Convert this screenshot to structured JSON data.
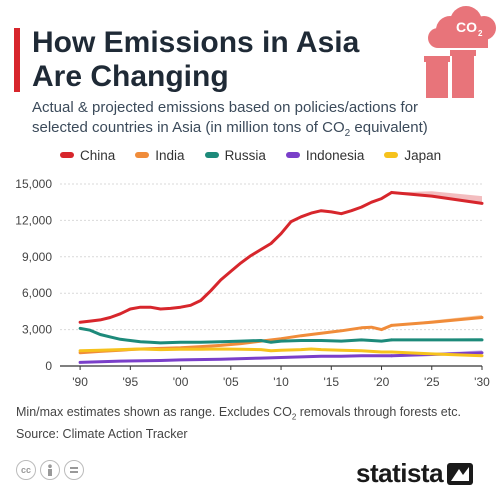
{
  "header": {
    "title_line1": "How Emissions in Asia",
    "title_line2": "Are Changing",
    "subtitle_line1": "Actual & projected emissions based on policies/actions for",
    "subtitle_line2_pre": "selected countries in Asia (in million tons of CO",
    "subtitle_sub": "2",
    "subtitle_line2_post": " equivalent)",
    "accent_color": "#d7262c"
  },
  "illustration": {
    "icon": "factory-co2-icon",
    "label": "CO",
    "label_sub": "2",
    "color": "#e8747a"
  },
  "chart_data": {
    "type": "line",
    "title": "How Emissions in Asia Are Changing",
    "xlabel": "",
    "ylabel": "",
    "x_range": [
      1988,
      2030
    ],
    "ylim": [
      0,
      15000
    ],
    "y_ticks": [
      0,
      3000,
      6000,
      9000,
      12000,
      15000
    ],
    "y_tick_labels": [
      "0",
      "3,000",
      "6,000",
      "9,000",
      "12,000",
      "15,000"
    ],
    "x_ticks": [
      1990,
      1995,
      2000,
      2005,
      2010,
      2015,
      2020,
      2025,
      2030
    ],
    "x_tick_labels": [
      "'90",
      "'95",
      "'00",
      "'05",
      "'10",
      "'15",
      "'20",
      "'25",
      "'30"
    ],
    "grid": true,
    "legend_position": "top",
    "series": [
      {
        "name": "China",
        "color": "#d7262c",
        "range_color": "#f2b6b8",
        "actual": [
          [
            1990,
            3600
          ],
          [
            1991,
            3700
          ],
          [
            1992,
            3800
          ],
          [
            1993,
            4000
          ],
          [
            1994,
            4300
          ],
          [
            1995,
            4700
          ],
          [
            1996,
            4850
          ],
          [
            1997,
            4850
          ],
          [
            1998,
            4700
          ],
          [
            1999,
            4750
          ],
          [
            2000,
            4850
          ],
          [
            2001,
            5000
          ],
          [
            2002,
            5400
          ],
          [
            2003,
            6200
          ],
          [
            2004,
            7100
          ],
          [
            2005,
            7800
          ],
          [
            2006,
            8500
          ],
          [
            2007,
            9100
          ],
          [
            2008,
            9600
          ],
          [
            2009,
            10100
          ],
          [
            2010,
            10900
          ],
          [
            2011,
            11900
          ],
          [
            2012,
            12300
          ],
          [
            2013,
            12600
          ],
          [
            2014,
            12800
          ],
          [
            2015,
            12700
          ],
          [
            2016,
            12550
          ],
          [
            2017,
            12800
          ],
          [
            2018,
            13100
          ],
          [
            2019,
            13500
          ],
          [
            2020,
            13800
          ],
          [
            2021,
            14300
          ]
        ],
        "projection_min": [
          [
            2021,
            14300
          ],
          [
            2025,
            14000
          ],
          [
            2030,
            13400
          ]
        ],
        "projection_max": [
          [
            2021,
            14300
          ],
          [
            2025,
            14400
          ],
          [
            2030,
            14000
          ]
        ]
      },
      {
        "name": "India",
        "color": "#f08c3a",
        "range_color": "#f8c99f",
        "actual": [
          [
            1990,
            1100
          ],
          [
            1992,
            1200
          ],
          [
            1994,
            1300
          ],
          [
            1996,
            1400
          ],
          [
            1998,
            1450
          ],
          [
            2000,
            1500
          ],
          [
            2002,
            1600
          ],
          [
            2004,
            1700
          ],
          [
            2006,
            1850
          ],
          [
            2008,
            2050
          ],
          [
            2010,
            2250
          ],
          [
            2012,
            2500
          ],
          [
            2014,
            2700
          ],
          [
            2016,
            2900
          ],
          [
            2018,
            3150
          ],
          [
            2019,
            3200
          ],
          [
            2020,
            3000
          ],
          [
            2021,
            3350
          ]
        ],
        "projection_min": [
          [
            2021,
            3350
          ],
          [
            2025,
            3600
          ],
          [
            2030,
            4000
          ]
        ],
        "projection_max": [
          [
            2021,
            3350
          ],
          [
            2025,
            3750
          ],
          [
            2030,
            4200
          ]
        ]
      },
      {
        "name": "Russia",
        "color": "#1d8a7a",
        "range_color": "#9fd1c8",
        "actual": [
          [
            1990,
            3100
          ],
          [
            1991,
            2950
          ],
          [
            1992,
            2600
          ],
          [
            1993,
            2400
          ],
          [
            1994,
            2200
          ],
          [
            1995,
            2100
          ],
          [
            1996,
            2000
          ],
          [
            1997,
            1950
          ],
          [
            1998,
            1900
          ],
          [
            2000,
            1950
          ],
          [
            2002,
            1950
          ],
          [
            2004,
            2000
          ],
          [
            2006,
            2050
          ],
          [
            2008,
            2100
          ],
          [
            2009,
            1950
          ],
          [
            2010,
            2050
          ],
          [
            2012,
            2100
          ],
          [
            2014,
            2100
          ],
          [
            2016,
            2050
          ],
          [
            2018,
            2150
          ],
          [
            2020,
            2050
          ],
          [
            2021,
            2150
          ]
        ],
        "projection_min": [
          [
            2021,
            2150
          ],
          [
            2025,
            2150
          ],
          [
            2030,
            2150
          ]
        ],
        "projection_max": [
          [
            2021,
            2150
          ],
          [
            2025,
            2250
          ],
          [
            2030,
            2300
          ]
        ]
      },
      {
        "name": "Indonesia",
        "color": "#7a3fc9",
        "range_color": "#cdb6ee",
        "actual": [
          [
            1990,
            300
          ],
          [
            1994,
            400
          ],
          [
            1998,
            450
          ],
          [
            2000,
            500
          ],
          [
            2004,
            550
          ],
          [
            2008,
            650
          ],
          [
            2010,
            700
          ],
          [
            2012,
            750
          ],
          [
            2014,
            800
          ],
          [
            2016,
            800
          ],
          [
            2018,
            850
          ],
          [
            2020,
            850
          ],
          [
            2021,
            850
          ]
        ],
        "projection_min": [
          [
            2021,
            850
          ],
          [
            2025,
            950
          ],
          [
            2030,
            1100
          ]
        ],
        "projection_max": [
          [
            2021,
            850
          ],
          [
            2025,
            1050
          ],
          [
            2030,
            1300
          ]
        ]
      },
      {
        "name": "Japan",
        "color": "#f6c21c",
        "range_color": "#fbe49a",
        "actual": [
          [
            1990,
            1250
          ],
          [
            1992,
            1300
          ],
          [
            1994,
            1350
          ],
          [
            1996,
            1400
          ],
          [
            1998,
            1350
          ],
          [
            2000,
            1380
          ],
          [
            2002,
            1380
          ],
          [
            2004,
            1400
          ],
          [
            2006,
            1380
          ],
          [
            2008,
            1350
          ],
          [
            2009,
            1250
          ],
          [
            2010,
            1300
          ],
          [
            2012,
            1350
          ],
          [
            2013,
            1400
          ],
          [
            2014,
            1350
          ],
          [
            2016,
            1300
          ],
          [
            2018,
            1250
          ],
          [
            2020,
            1150
          ],
          [
            2021,
            1150
          ]
        ],
        "projection_min": [
          [
            2021,
            1150
          ],
          [
            2025,
            1000
          ],
          [
            2030,
            850
          ]
        ],
        "projection_max": [
          [
            2021,
            1150
          ],
          [
            2025,
            1100
          ],
          [
            2030,
            1000
          ]
        ]
      }
    ]
  },
  "footer": {
    "note_pre": "Min/max estimates shown as range. Excludes CO",
    "note_sub": "2",
    "note_post": " removals through forests etc.",
    "source": "Source: Climate Action Tracker",
    "cc_icons": [
      "cc-icon",
      "attribution-icon",
      "no-derivatives-icon"
    ],
    "logo_text": "statista",
    "logo_icon": "statista-logo-icon"
  }
}
